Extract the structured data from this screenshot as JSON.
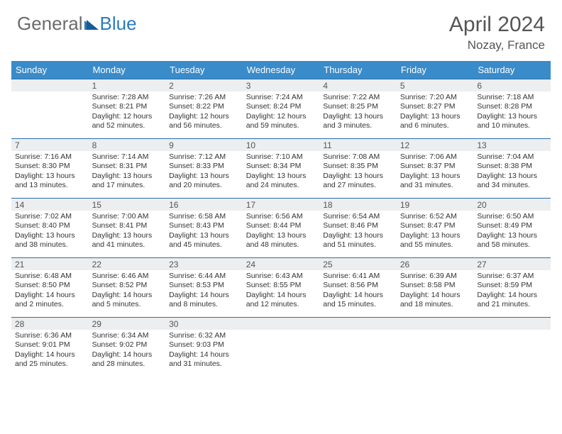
{
  "brand": {
    "part1": "General",
    "part2": "Blue"
  },
  "title": "April 2024",
  "location": "Nozay, France",
  "header_bg": "#3a8bc9",
  "days_of_week": [
    "Sunday",
    "Monday",
    "Tuesday",
    "Wednesday",
    "Thursday",
    "Friday",
    "Saturday"
  ],
  "lead_blanks": 0,
  "days": [
    {
      "n": "",
      "sunrise": "",
      "sunset": "",
      "daylight": ""
    },
    {
      "n": "1",
      "sunrise": "7:28 AM",
      "sunset": "8:21 PM",
      "daylight": "12 hours and 52 minutes."
    },
    {
      "n": "2",
      "sunrise": "7:26 AM",
      "sunset": "8:22 PM",
      "daylight": "12 hours and 56 minutes."
    },
    {
      "n": "3",
      "sunrise": "7:24 AM",
      "sunset": "8:24 PM",
      "daylight": "12 hours and 59 minutes."
    },
    {
      "n": "4",
      "sunrise": "7:22 AM",
      "sunset": "8:25 PM",
      "daylight": "13 hours and 3 minutes."
    },
    {
      "n": "5",
      "sunrise": "7:20 AM",
      "sunset": "8:27 PM",
      "daylight": "13 hours and 6 minutes."
    },
    {
      "n": "6",
      "sunrise": "7:18 AM",
      "sunset": "8:28 PM",
      "daylight": "13 hours and 10 minutes."
    },
    {
      "n": "7",
      "sunrise": "7:16 AM",
      "sunset": "8:30 PM",
      "daylight": "13 hours and 13 minutes."
    },
    {
      "n": "8",
      "sunrise": "7:14 AM",
      "sunset": "8:31 PM",
      "daylight": "13 hours and 17 minutes."
    },
    {
      "n": "9",
      "sunrise": "7:12 AM",
      "sunset": "8:33 PM",
      "daylight": "13 hours and 20 minutes."
    },
    {
      "n": "10",
      "sunrise": "7:10 AM",
      "sunset": "8:34 PM",
      "daylight": "13 hours and 24 minutes."
    },
    {
      "n": "11",
      "sunrise": "7:08 AM",
      "sunset": "8:35 PM",
      "daylight": "13 hours and 27 minutes."
    },
    {
      "n": "12",
      "sunrise": "7:06 AM",
      "sunset": "8:37 PM",
      "daylight": "13 hours and 31 minutes."
    },
    {
      "n": "13",
      "sunrise": "7:04 AM",
      "sunset": "8:38 PM",
      "daylight": "13 hours and 34 minutes."
    },
    {
      "n": "14",
      "sunrise": "7:02 AM",
      "sunset": "8:40 PM",
      "daylight": "13 hours and 38 minutes."
    },
    {
      "n": "15",
      "sunrise": "7:00 AM",
      "sunset": "8:41 PM",
      "daylight": "13 hours and 41 minutes."
    },
    {
      "n": "16",
      "sunrise": "6:58 AM",
      "sunset": "8:43 PM",
      "daylight": "13 hours and 45 minutes."
    },
    {
      "n": "17",
      "sunrise": "6:56 AM",
      "sunset": "8:44 PM",
      "daylight": "13 hours and 48 minutes."
    },
    {
      "n": "18",
      "sunrise": "6:54 AM",
      "sunset": "8:46 PM",
      "daylight": "13 hours and 51 minutes."
    },
    {
      "n": "19",
      "sunrise": "6:52 AM",
      "sunset": "8:47 PM",
      "daylight": "13 hours and 55 minutes."
    },
    {
      "n": "20",
      "sunrise": "6:50 AM",
      "sunset": "8:49 PM",
      "daylight": "13 hours and 58 minutes."
    },
    {
      "n": "21",
      "sunrise": "6:48 AM",
      "sunset": "8:50 PM",
      "daylight": "14 hours and 2 minutes."
    },
    {
      "n": "22",
      "sunrise": "6:46 AM",
      "sunset": "8:52 PM",
      "daylight": "14 hours and 5 minutes."
    },
    {
      "n": "23",
      "sunrise": "6:44 AM",
      "sunset": "8:53 PM",
      "daylight": "14 hours and 8 minutes."
    },
    {
      "n": "24",
      "sunrise": "6:43 AM",
      "sunset": "8:55 PM",
      "daylight": "14 hours and 12 minutes."
    },
    {
      "n": "25",
      "sunrise": "6:41 AM",
      "sunset": "8:56 PM",
      "daylight": "14 hours and 15 minutes."
    },
    {
      "n": "26",
      "sunrise": "6:39 AM",
      "sunset": "8:58 PM",
      "daylight": "14 hours and 18 minutes."
    },
    {
      "n": "27",
      "sunrise": "6:37 AM",
      "sunset": "8:59 PM",
      "daylight": "14 hours and 21 minutes."
    },
    {
      "n": "28",
      "sunrise": "6:36 AM",
      "sunset": "9:01 PM",
      "daylight": "14 hours and 25 minutes."
    },
    {
      "n": "29",
      "sunrise": "6:34 AM",
      "sunset": "9:02 PM",
      "daylight": "14 hours and 28 minutes."
    },
    {
      "n": "30",
      "sunrise": "6:32 AM",
      "sunset": "9:03 PM",
      "daylight": "14 hours and 31 minutes."
    }
  ],
  "labels": {
    "sunrise": "Sunrise:",
    "sunset": "Sunset:",
    "daylight": "Daylight:"
  }
}
